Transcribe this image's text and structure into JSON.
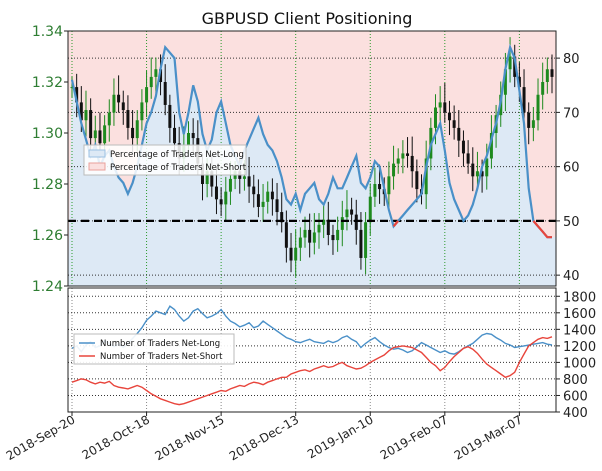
{
  "chart_data": [
    {
      "type": "candlestick+line",
      "title": "GBPUSD Client Positioning",
      "x_ticks": [
        "2018-Sep-20",
        "2018-Oct-18",
        "2018-Nov-15",
        "2018-Dec-13",
        "2019-Jan-10",
        "2019-Feb-07",
        "2019-Mar-07"
      ],
      "left_axis": {
        "ticks": [
          "1.24",
          "1.26",
          "1.28",
          "1.30",
          "1.32",
          "1.34"
        ],
        "ylim": [
          1.24,
          1.34
        ]
      },
      "right_axis": {
        "ticks": [
          "40",
          "50",
          "60",
          "70",
          "80"
        ],
        "ylim": [
          38,
          85
        ]
      },
      "reference_line": 50,
      "grid": true,
      "legend": {
        "placement": "center-left",
        "entries": [
          "Percentage of Traders Net-Long",
          "Percentage of Traders Net-Short"
        ]
      },
      "colors": {
        "up": "#1e8a1e",
        "down": "#111111",
        "net_long": "#4a90c8",
        "net_short": "#e8453c",
        "fill_long": "#dde9f5",
        "fill_short": "#fbe0df"
      },
      "price_close": [
        1.318,
        1.312,
        1.305,
        1.309,
        1.298,
        1.301,
        1.296,
        1.303,
        1.308,
        1.315,
        1.312,
        1.309,
        1.302,
        1.298,
        1.305,
        1.312,
        1.318,
        1.322,
        1.325,
        1.32,
        1.311,
        1.302,
        1.296,
        1.29,
        1.295,
        1.3,
        1.298,
        1.288,
        1.28,
        1.285,
        1.279,
        1.274,
        1.272,
        1.277,
        1.282,
        1.285,
        1.282,
        1.283,
        1.279,
        1.276,
        1.271,
        1.273,
        1.277,
        1.274,
        1.269,
        1.265,
        1.255,
        1.25,
        1.255,
        1.259,
        1.262,
        1.257,
        1.261,
        1.264,
        1.266,
        1.26,
        1.258,
        1.262,
        1.267,
        1.27,
        1.268,
        1.262,
        1.251,
        1.265,
        1.275,
        1.28,
        1.278,
        1.276,
        1.283,
        1.288,
        1.29,
        1.292,
        1.291,
        1.285,
        1.278,
        1.276,
        1.29,
        1.302,
        1.31,
        1.312,
        1.308,
        1.305,
        1.302,
        1.297,
        1.292,
        1.288,
        1.283,
        1.285,
        1.283,
        1.29,
        1.3,
        1.307,
        1.315,
        1.325,
        1.33,
        1.322,
        1.318,
        1.308,
        1.302,
        1.305,
        1.315,
        1.32,
        1.325,
        1.322
      ],
      "net_long_pct": [
        76,
        72,
        68,
        65,
        62,
        64,
        60,
        62,
        63,
        60,
        58,
        57,
        55,
        57,
        60,
        64,
        68,
        70,
        73,
        78,
        82,
        81,
        80,
        70,
        66,
        70,
        75,
        72,
        66,
        63,
        65,
        70,
        72,
        68,
        64,
        62,
        60,
        63,
        65,
        67,
        69,
        66,
        64,
        63,
        61,
        58,
        54,
        53,
        55,
        52,
        55,
        56,
        57,
        54,
        53,
        55,
        58,
        56,
        56,
        58,
        60,
        62,
        57,
        56,
        58,
        61,
        60,
        56,
        52,
        49,
        50,
        51,
        52,
        53,
        54,
        55,
        60,
        64,
        66,
        68,
        63,
        57,
        54,
        52,
        50,
        51,
        53,
        56,
        60,
        62,
        65,
        68,
        72,
        78,
        82,
        80,
        74,
        68,
        56,
        50,
        49,
        48,
        47,
        47
      ],
      "net_short_pct": [
        24,
        28,
        32,
        35,
        38,
        36,
        40,
        38,
        37,
        40,
        42,
        43,
        45,
        43,
        40,
        36,
        32,
        30,
        27,
        22,
        18,
        19,
        20,
        30,
        34,
        30,
        25,
        28,
        34,
        37,
        35,
        30,
        28,
        32,
        36,
        38,
        40,
        37,
        35,
        33,
        31,
        34,
        36,
        37,
        39,
        42,
        46,
        47,
        45,
        48,
        45,
        44,
        43,
        46,
        47,
        45,
        42,
        44,
        44,
        42,
        40,
        38,
        43,
        44,
        42,
        39,
        40,
        44,
        48,
        51,
        50,
        49,
        48,
        47,
        46,
        45,
        40,
        36,
        34,
        32,
        37,
        43,
        46,
        48,
        50,
        49,
        47,
        44,
        40,
        38,
        35,
        32,
        28,
        22,
        18,
        20,
        26,
        32,
        44,
        50,
        51,
        52,
        53,
        53
      ]
    },
    {
      "type": "line",
      "right_axis": {
        "ticks": [
          "400",
          "600",
          "800",
          "1000",
          "1200",
          "1400",
          "1600",
          "1800"
        ],
        "ylim": [
          400,
          1900
        ]
      },
      "legend": {
        "placement": "left",
        "entries": [
          "Number of Traders Net-Long",
          "Number of Traders Net-Short"
        ]
      },
      "series": [
        {
          "name": "Number of Traders Net-Long",
          "color": "#4a90c8",
          "values": [
            1170,
            1200,
            1130,
            1210,
            1250,
            1180,
            1200,
            1260,
            1230,
            1190,
            1220,
            1180,
            1230,
            1290,
            1350,
            1420,
            1510,
            1560,
            1620,
            1600,
            1580,
            1680,
            1640,
            1560,
            1500,
            1540,
            1620,
            1650,
            1590,
            1540,
            1560,
            1590,
            1640,
            1560,
            1500,
            1470,
            1430,
            1450,
            1480,
            1420,
            1440,
            1500,
            1460,
            1420,
            1380,
            1340,
            1300,
            1280,
            1250,
            1240,
            1260,
            1280,
            1250,
            1240,
            1230,
            1260,
            1240,
            1260,
            1300,
            1320,
            1280,
            1250,
            1180,
            1230,
            1270,
            1300,
            1250,
            1210,
            1180,
            1160,
            1170,
            1150,
            1120,
            1140,
            1190,
            1240,
            1210,
            1180,
            1150,
            1120,
            1140,
            1110,
            1100,
            1130,
            1170,
            1200,
            1230,
            1280,
            1330,
            1350,
            1340,
            1300,
            1270,
            1230,
            1210,
            1180,
            1190,
            1200,
            1210,
            1220,
            1230,
            1240,
            1220,
            1210
          ]
        },
        {
          "name": "Number of Traders Net-Short",
          "color": "#e8453c",
          "values": [
            760,
            780,
            800,
            790,
            760,
            740,
            760,
            750,
            770,
            720,
            700,
            690,
            680,
            700,
            720,
            700,
            660,
            620,
            590,
            560,
            540,
            520,
            500,
            490,
            500,
            520,
            540,
            560,
            580,
            600,
            620,
            640,
            660,
            650,
            680,
            700,
            720,
            710,
            740,
            760,
            750,
            730,
            760,
            780,
            800,
            820,
            820,
            860,
            880,
            900,
            910,
            890,
            920,
            940,
            960,
            940,
            950,
            980,
            1000,
            960,
            940,
            920,
            930,
            960,
            1000,
            1030,
            1060,
            1090,
            1140,
            1180,
            1190,
            1200,
            1190,
            1180,
            1150,
            1120,
            1060,
            1000,
            960,
            900,
            940,
            1010,
            1070,
            1120,
            1170,
            1190,
            1160,
            1110,
            1040,
            980,
            940,
            900,
            860,
            820,
            840,
            880,
            1000,
            1100,
            1200,
            1240,
            1280,
            1300,
            1290,
            1310
          ]
        }
      ]
    }
  ]
}
